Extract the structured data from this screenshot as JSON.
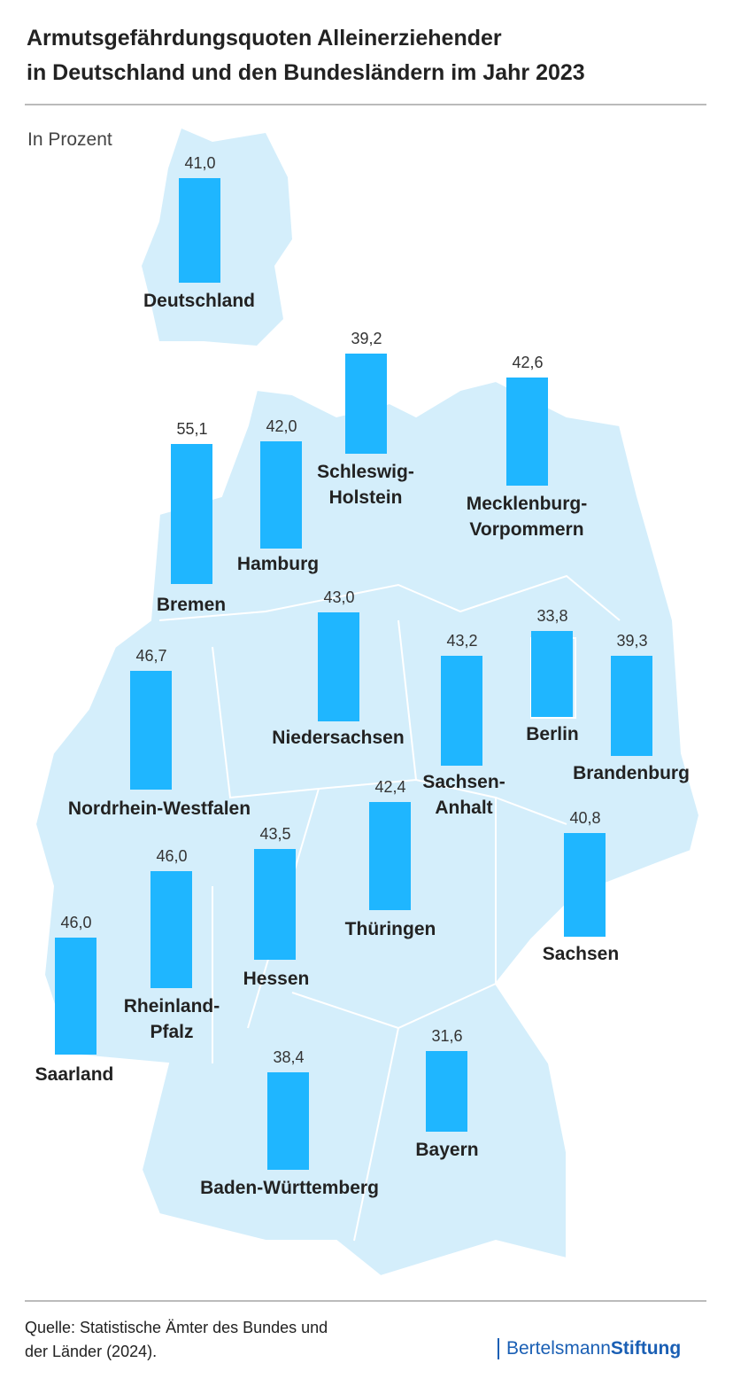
{
  "header": {
    "title": "Armutsgefährdungsquoten Alleinerziehender\nin Deutschland und den Bundesländern im Jahr 2023"
  },
  "chart_data": {
    "type": "bar",
    "subtitle": "In Prozent",
    "color": "#1fb6ff",
    "categories": [
      "Deutschland",
      "Schleswig-\nHolstein",
      "Mecklenburg-\nVorpommern",
      "Bremen",
      "Hamburg",
      "Niedersachsen",
      "Sachsen-\nAnhalt",
      "Berlin",
      "Brandenburg",
      "Nordrhein-Westfalen",
      "Thüringen",
      "Sachsen",
      "Hessen",
      "Rheinland-\nPfalz",
      "Saarland",
      "Bayern",
      "Baden-Württemberg"
    ],
    "values": [
      41.0,
      39.2,
      42.6,
      55.1,
      42.0,
      43.0,
      43.2,
      33.8,
      39.3,
      46.7,
      42.4,
      40.8,
      43.5,
      46.0,
      46.0,
      31.6,
      38.4
    ],
    "value_labels": [
      "41,0",
      "39,2",
      "42,6",
      "55,1",
      "42,0",
      "43,0",
      "43,2",
      "33,8",
      "39,3",
      "46,7",
      "42,4",
      "40,8",
      "43,5",
      "46,0",
      "46,0",
      "31,6",
      "38,4"
    ]
  },
  "footer": {
    "source": "Quelle: Statistische Ämter des Bundes und\nder Länder (2024).",
    "logo_light": "Bertelsmann",
    "logo_bold": "Stiftung"
  }
}
